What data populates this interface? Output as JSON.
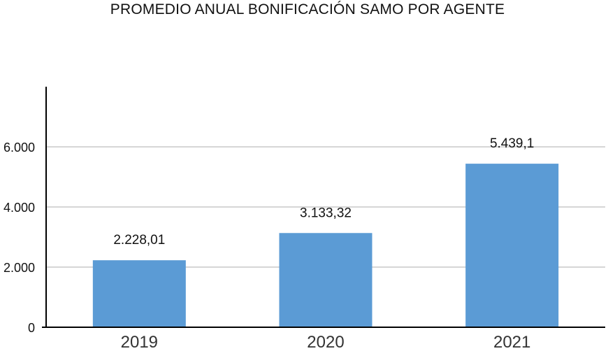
{
  "chart_data": {
    "type": "bar",
    "title": "PROMEDIO ANUAL BONIFICACIÓN SAMO POR AGENTE",
    "xlabel": "",
    "ylabel": "",
    "categories": [
      "2019",
      "2020",
      "2021"
    ],
    "values": [
      2228.01,
      3133.32,
      5439.1
    ],
    "data_labels": [
      "2.228,01",
      "3.133,32",
      "5.439,1"
    ],
    "ylim": [
      0,
      8000
    ],
    "yticks": [
      0,
      2000,
      4000,
      6000
    ],
    "ytick_labels": [
      "0",
      "2.000",
      "4.000",
      "6.000"
    ],
    "grid": true,
    "legend": "none",
    "bar_color": "#5b9bd5",
    "grid_color": "#c8c8c8",
    "axis_color": "#000000"
  }
}
